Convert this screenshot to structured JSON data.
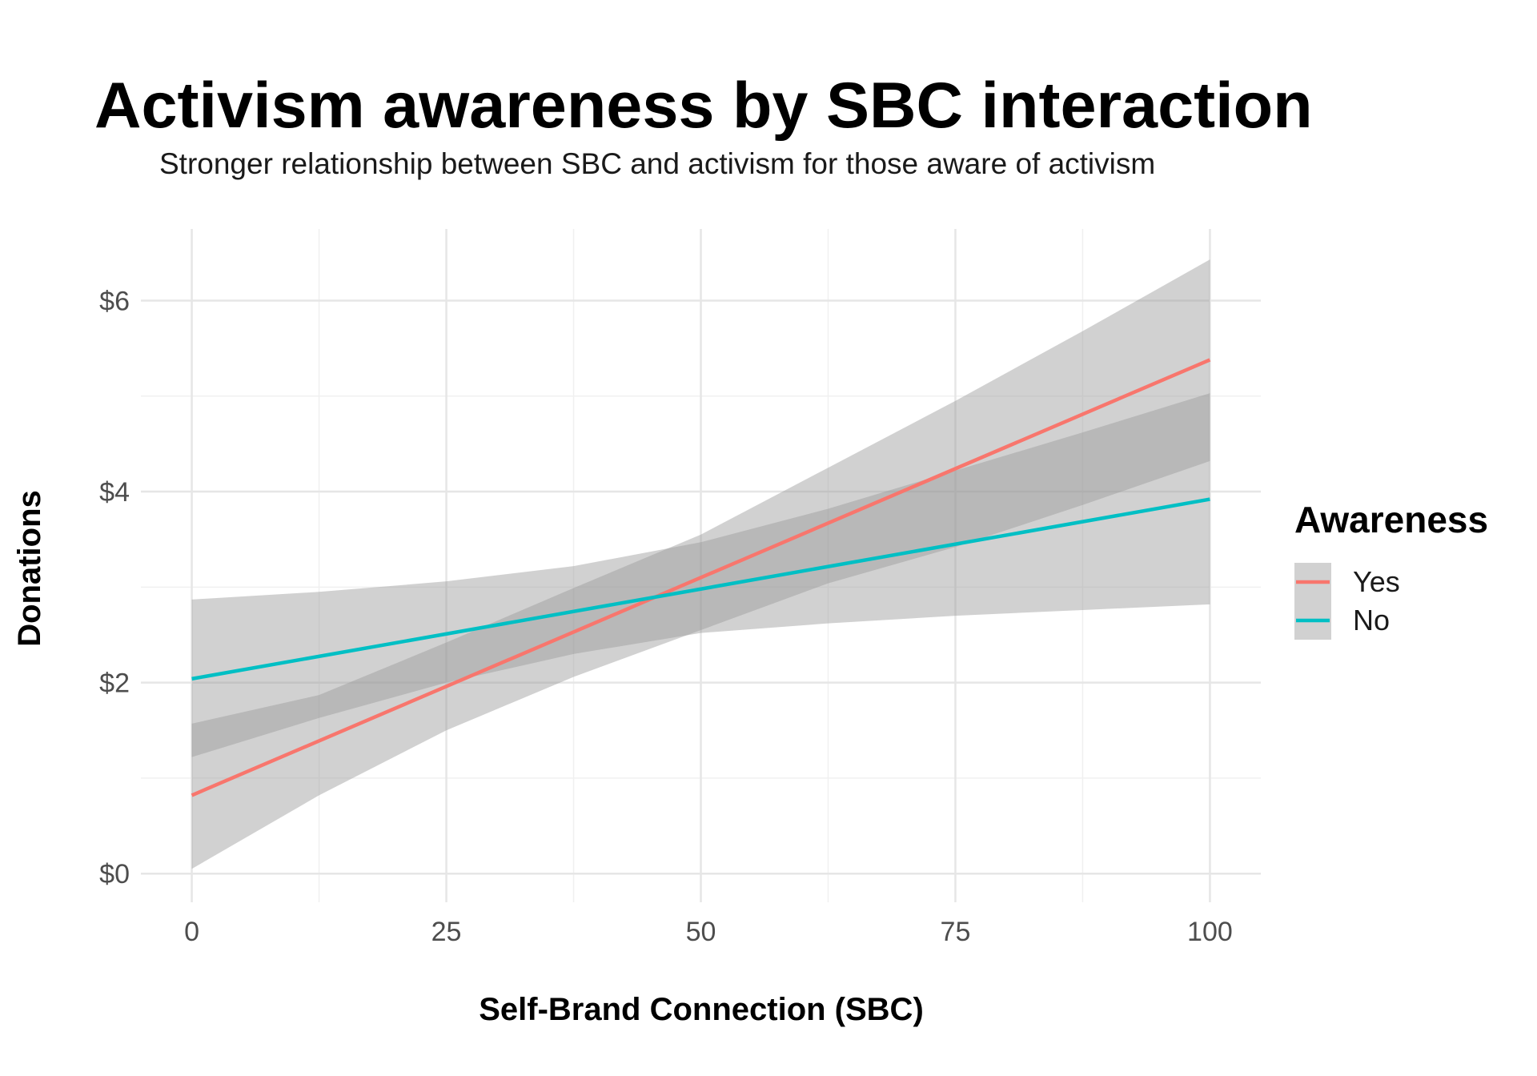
{
  "chart_data": {
    "type": "line",
    "title": "Activism awareness by SBC interaction",
    "subtitle": "Stronger relationship between SBC and activism for those aware of activism",
    "xlabel": "Self-Brand Connection (SBC)",
    "ylabel": "Donations",
    "xlim": [
      -5,
      105
    ],
    "ylim": [
      -0.3,
      6.75
    ],
    "x_ticks": [
      0,
      25,
      50,
      75,
      100
    ],
    "x_tick_labels": [
      "0",
      "25",
      "50",
      "75",
      "100"
    ],
    "y_ticks": [
      0,
      2,
      4,
      6
    ],
    "y_tick_labels": [
      "$0",
      "$2",
      "$4",
      "$6"
    ],
    "grid": true,
    "legend": {
      "title": "Awareness",
      "position": "right"
    },
    "series": [
      {
        "name": "Yes",
        "color": "#F8766D",
        "x": [
          0,
          100
        ],
        "y": [
          0.82,
          5.38
        ],
        "band": {
          "x": [
            0,
            12.5,
            25,
            37.5,
            50,
            62.5,
            75,
            87.5,
            100
          ],
          "lower": [
            0.05,
            0.82,
            1.5,
            2.06,
            2.55,
            3.04,
            3.42,
            3.86,
            4.32
          ],
          "upper": [
            1.57,
            1.87,
            2.42,
            2.99,
            3.55,
            4.25,
            4.95,
            5.68,
            6.43
          ]
        }
      },
      {
        "name": "No",
        "color": "#00BFC4",
        "x": [
          0,
          100
        ],
        "y": [
          2.04,
          3.92
        ],
        "band": {
          "x": [
            0,
            12.5,
            25,
            37.5,
            50,
            62.5,
            75,
            87.5,
            100
          ],
          "lower": [
            1.22,
            1.63,
            2.0,
            2.3,
            2.52,
            2.62,
            2.7,
            2.76,
            2.82
          ],
          "upper": [
            2.87,
            2.95,
            3.06,
            3.22,
            3.47,
            3.82,
            4.22,
            4.62,
            5.03
          ]
        }
      }
    ]
  }
}
